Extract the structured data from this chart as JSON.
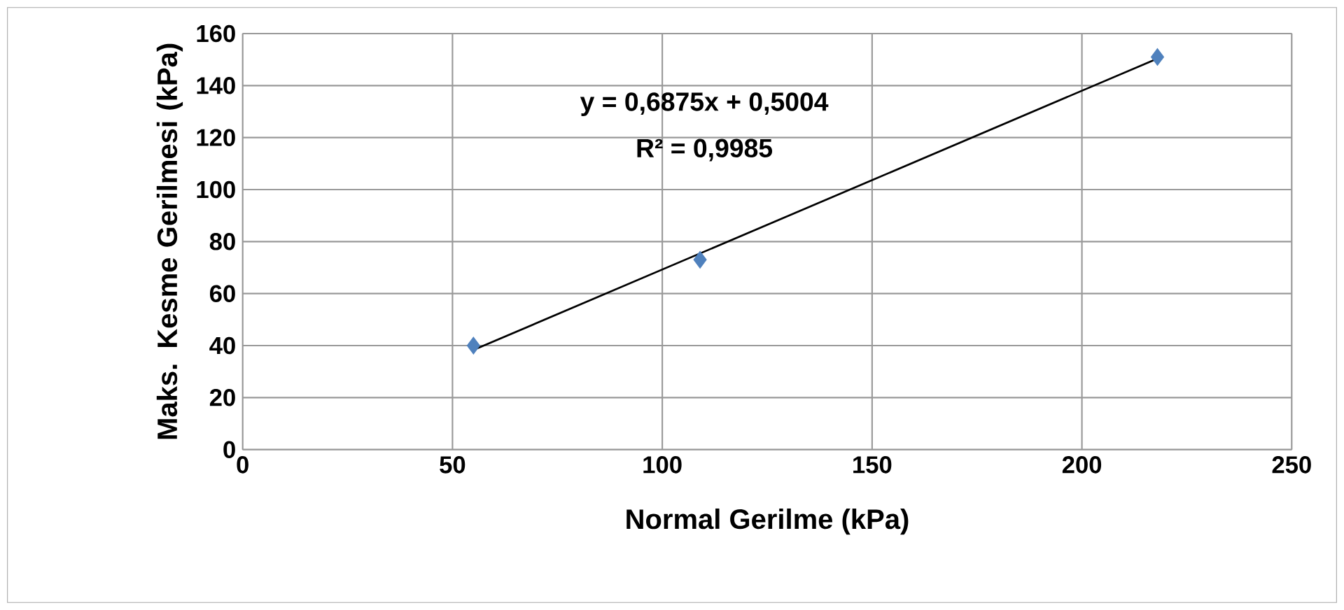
{
  "chart_data": {
    "type": "scatter",
    "xlabel": "Normal Gerilme (kPa)",
    "ylabel": "Maks. Kesme Gerilmesi (kPa)",
    "series": [
      {
        "color": "#4f81bd",
        "marker": "diamond",
        "x": [
          55,
          109,
          218
        ],
        "values": [
          40,
          73,
          151
        ]
      },
      {
        "type": "line",
        "color": "#000000",
        "marker": "none",
        "line_style": "solid",
        "x": [
          55,
          218
        ],
        "values": [
          38.3,
          150.4
        ]
      }
    ],
    "annotations": [
      "y = 0,6875x + 0,5004",
      "R² = 0,9985"
    ],
    "xlim": [
      0,
      250
    ],
    "xticks": [
      0,
      50,
      100,
      150,
      200,
      250
    ],
    "ylim": [
      0,
      160
    ],
    "yticks": [
      0,
      20,
      40,
      60,
      80,
      100,
      120,
      140,
      160
    ],
    "grid": true
  }
}
